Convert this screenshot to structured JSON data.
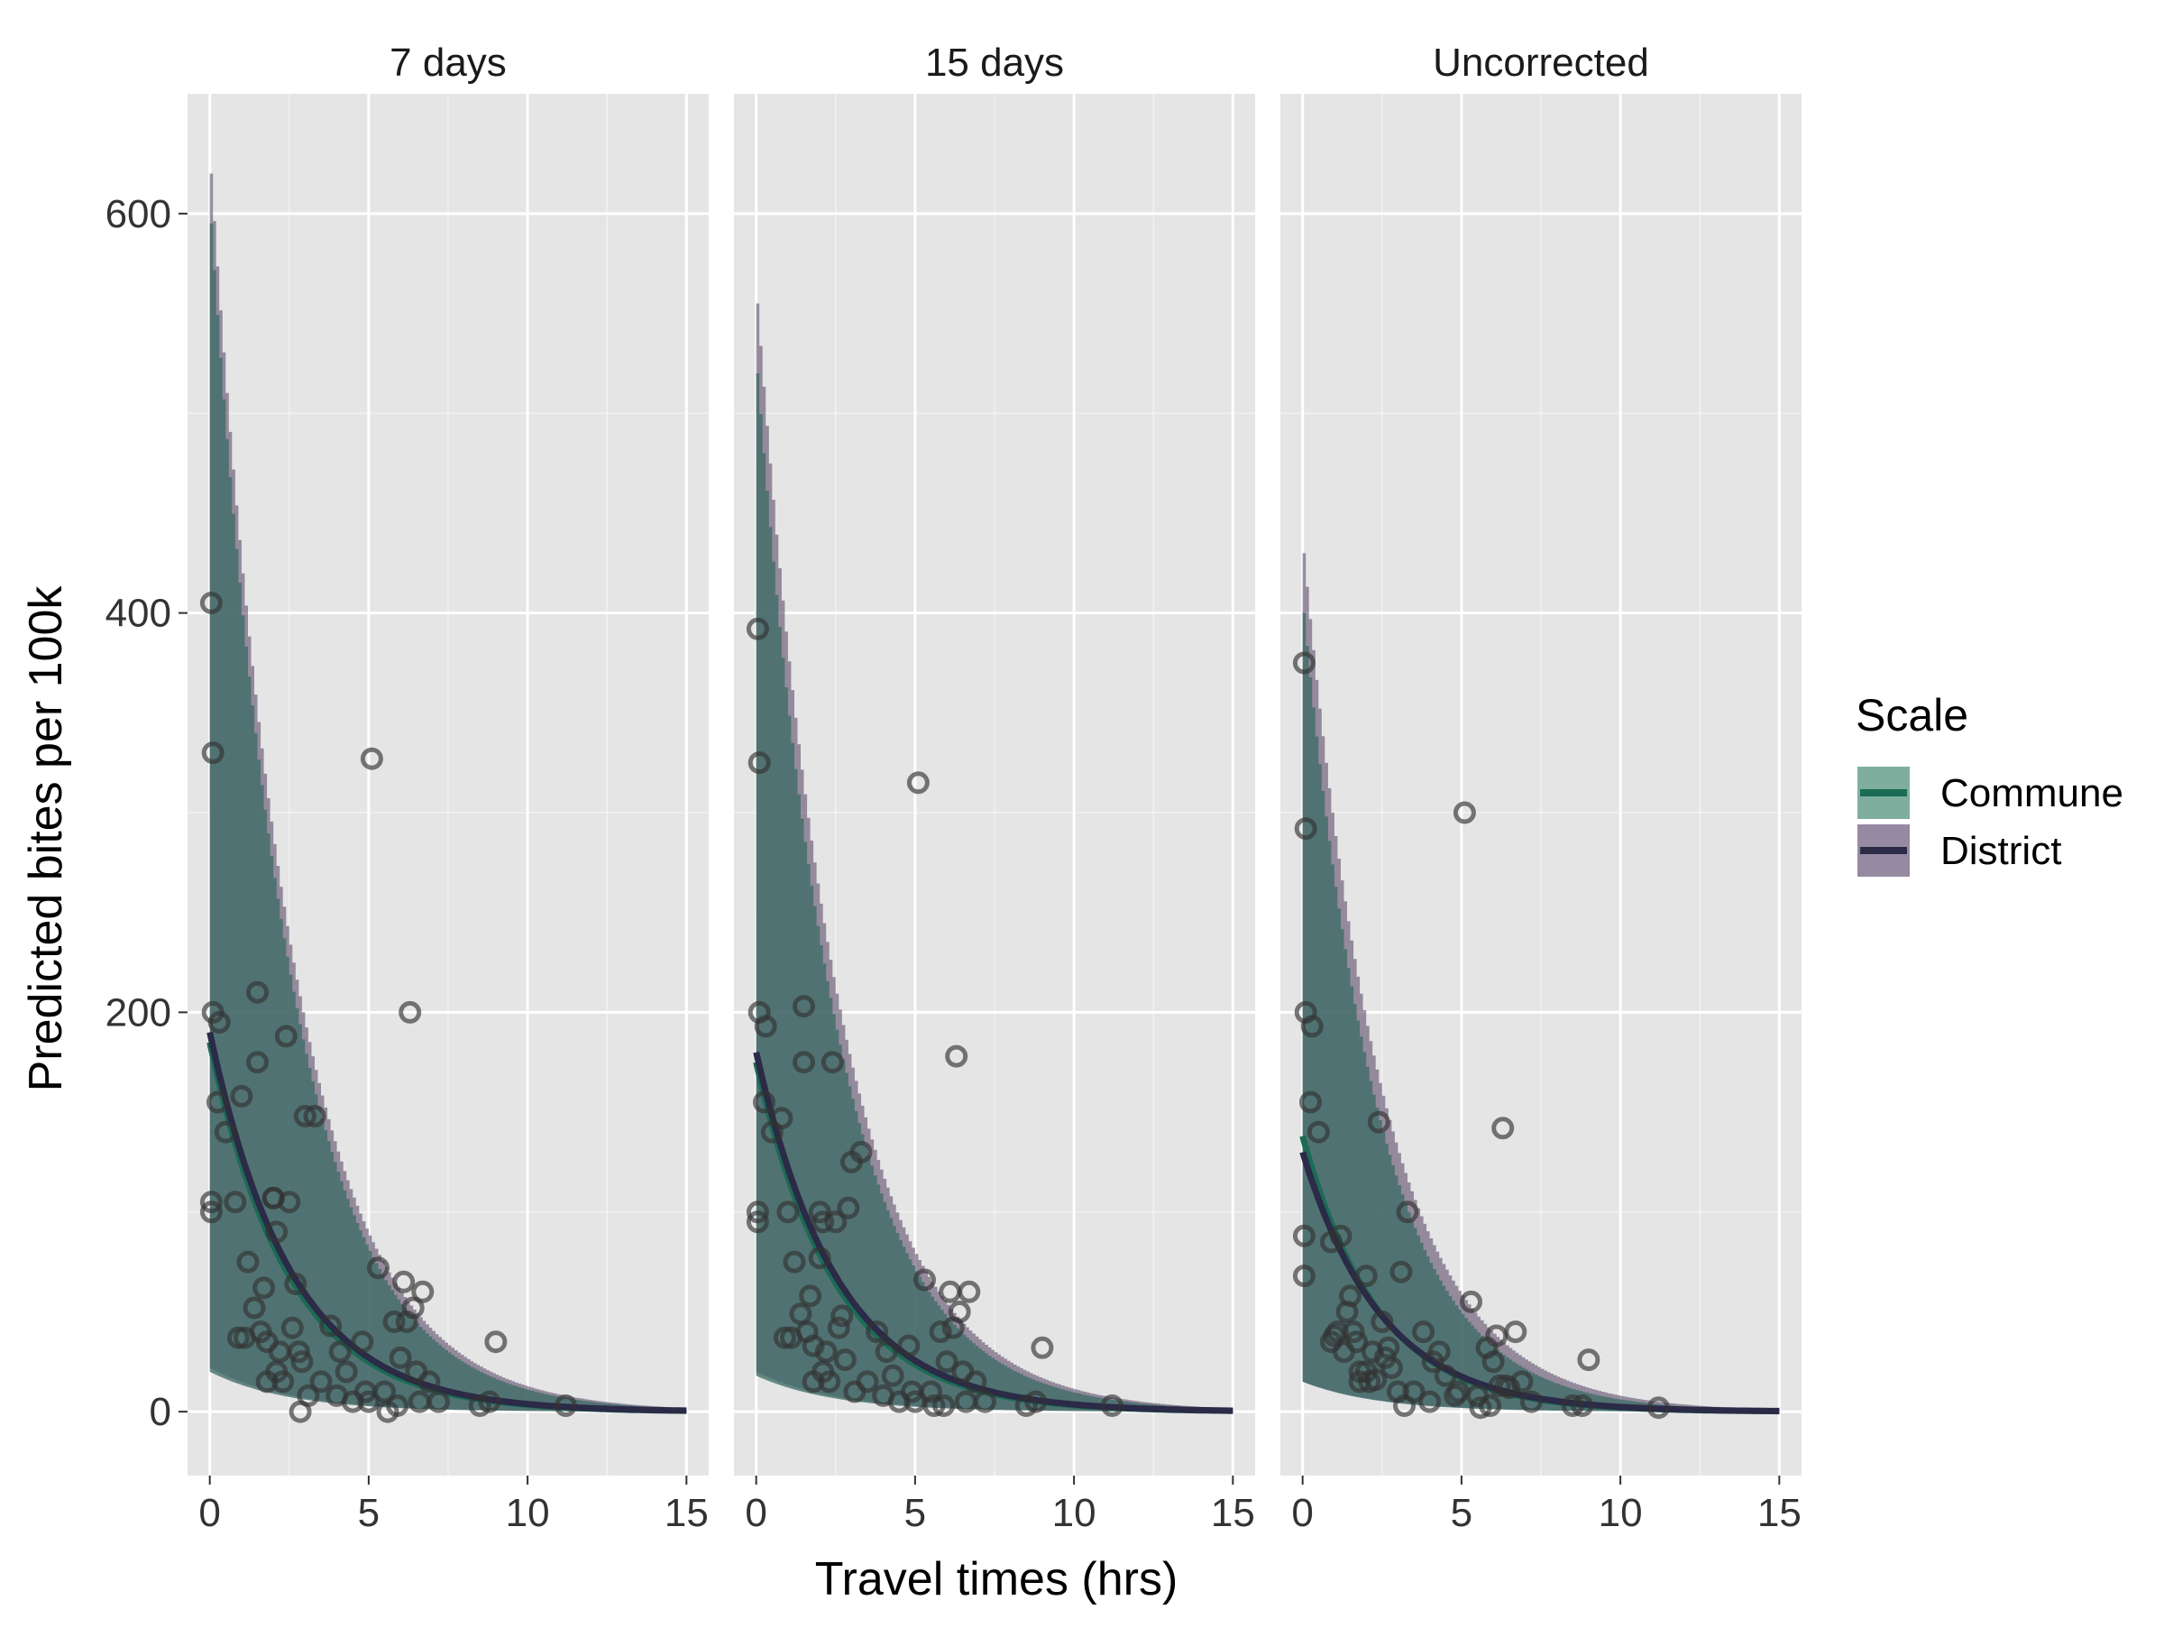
{
  "chart_data": {
    "type": "scatter",
    "xlabel": "Travel  times (hrs)",
    "ylabel": "Predicted bites per 100k",
    "xlim": [
      -0.7,
      15.7
    ],
    "ylim": [
      -32,
      660
    ],
    "x_ticks": [
      0,
      5,
      10,
      15
    ],
    "y_ticks": [
      0,
      200,
      400,
      600
    ],
    "x_tick_labels": [
      "0",
      "5",
      "10",
      "15"
    ],
    "y_tick_labels": [
      "0",
      "200",
      "400",
      "600"
    ],
    "grid": true,
    "legend": {
      "title": "Scale",
      "placement": "right",
      "entries": [
        {
          "label": "Commune",
          "line_color": "#1b6b55",
          "fill_color": "#7fae9e"
        },
        {
          "label": "District",
          "line_color": "#2b2a47",
          "fill_color": "#958aa2"
        }
      ]
    },
    "colors": {
      "panel_bg": "#e5e5e5",
      "grid": "#ffffff",
      "commune_band": "#3f6b66",
      "district_band": "#62536f",
      "point_stroke": "#333333"
    },
    "panels": [
      {
        "title": "7 days",
        "commune": {
          "a": 185,
          "k": 0.4,
          "lower_a": 20,
          "upper_a": 595
        },
        "district": {
          "a": 190,
          "k": 0.39,
          "lower_a": 22,
          "upper_a": 620
        },
        "points": [
          [
            0.05,
            405
          ],
          [
            0.1,
            330
          ],
          [
            0.1,
            200
          ],
          [
            0.05,
            105
          ],
          [
            0.05,
            100
          ],
          [
            0.3,
            195
          ],
          [
            0.25,
            155
          ],
          [
            0.5,
            140
          ],
          [
            0.8,
            105
          ],
          [
            1.0,
            158
          ],
          [
            0.9,
            37
          ],
          [
            1.1,
            37
          ],
          [
            1.2,
            75
          ],
          [
            1.4,
            52
          ],
          [
            1.5,
            210
          ],
          [
            1.5,
            175
          ],
          [
            1.6,
            40
          ],
          [
            1.7,
            62
          ],
          [
            1.8,
            35
          ],
          [
            1.8,
            15
          ],
          [
            2.0,
            107
          ],
          [
            2.0,
            107
          ],
          [
            2.1,
            90
          ],
          [
            2.1,
            20
          ],
          [
            2.2,
            30
          ],
          [
            2.3,
            15
          ],
          [
            2.4,
            188
          ],
          [
            2.5,
            105
          ],
          [
            2.6,
            42
          ],
          [
            2.7,
            64
          ],
          [
            2.8,
            30
          ],
          [
            2.85,
            0
          ],
          [
            2.9,
            25
          ],
          [
            3.0,
            148
          ],
          [
            3.1,
            8
          ],
          [
            3.3,
            148
          ],
          [
            3.5,
            15
          ],
          [
            3.8,
            43
          ],
          [
            4.0,
            8
          ],
          [
            4.1,
            30
          ],
          [
            4.3,
            20
          ],
          [
            4.5,
            5
          ],
          [
            4.8,
            35
          ],
          [
            4.9,
            10
          ],
          [
            5.0,
            5
          ],
          [
            5.1,
            327
          ],
          [
            5.3,
            72
          ],
          [
            5.5,
            10
          ],
          [
            5.6,
            0
          ],
          [
            5.8,
            45
          ],
          [
            5.9,
            3
          ],
          [
            6.0,
            27
          ],
          [
            6.1,
            65
          ],
          [
            6.2,
            45
          ],
          [
            6.3,
            200
          ],
          [
            6.4,
            52
          ],
          [
            6.5,
            20
          ],
          [
            6.6,
            5
          ],
          [
            6.7,
            60
          ],
          [
            6.9,
            15
          ],
          [
            7.2,
            5
          ],
          [
            8.5,
            3
          ],
          [
            8.8,
            5
          ],
          [
            9.0,
            35
          ],
          [
            11.2,
            3
          ]
        ]
      },
      {
        "title": "15 days",
        "commune": {
          "a": 175,
          "k": 0.4,
          "lower_a": 18,
          "upper_a": 520
        },
        "district": {
          "a": 180,
          "k": 0.39,
          "lower_a": 20,
          "upper_a": 555
        },
        "points": [
          [
            0.05,
            392
          ],
          [
            0.1,
            325
          ],
          [
            0.1,
            200
          ],
          [
            0.05,
            100
          ],
          [
            0.05,
            95
          ],
          [
            0.3,
            193
          ],
          [
            0.25,
            155
          ],
          [
            0.5,
            140
          ],
          [
            0.8,
            147
          ],
          [
            1.0,
            100
          ],
          [
            0.9,
            37
          ],
          [
            1.1,
            37
          ],
          [
            1.2,
            75
          ],
          [
            1.4,
            49
          ],
          [
            1.5,
            203
          ],
          [
            1.5,
            175
          ],
          [
            1.6,
            40
          ],
          [
            1.7,
            58
          ],
          [
            1.8,
            33
          ],
          [
            1.8,
            15
          ],
          [
            2.0,
            77
          ],
          [
            2.0,
            100
          ],
          [
            2.1,
            95
          ],
          [
            2.1,
            20
          ],
          [
            2.2,
            30
          ],
          [
            2.3,
            15
          ],
          [
            2.4,
            175
          ],
          [
            2.5,
            95
          ],
          [
            2.6,
            42
          ],
          [
            2.7,
            48
          ],
          [
            2.8,
            26
          ],
          [
            2.9,
            102
          ],
          [
            3.0,
            125
          ],
          [
            3.1,
            10
          ],
          [
            3.3,
            130
          ],
          [
            3.5,
            15
          ],
          [
            3.8,
            40
          ],
          [
            4.0,
            8
          ],
          [
            4.1,
            30
          ],
          [
            4.3,
            18
          ],
          [
            4.5,
            5
          ],
          [
            4.8,
            33
          ],
          [
            4.9,
            10
          ],
          [
            5.0,
            5
          ],
          [
            5.1,
            315
          ],
          [
            5.3,
            66
          ],
          [
            5.5,
            10
          ],
          [
            5.6,
            3
          ],
          [
            5.8,
            40
          ],
          [
            5.9,
            3
          ],
          [
            6.0,
            25
          ],
          [
            6.1,
            60
          ],
          [
            6.2,
            42
          ],
          [
            6.3,
            178
          ],
          [
            6.4,
            50
          ],
          [
            6.5,
            20
          ],
          [
            6.6,
            5
          ],
          [
            6.7,
            60
          ],
          [
            6.9,
            15
          ],
          [
            7.2,
            5
          ],
          [
            8.5,
            3
          ],
          [
            8.8,
            5
          ],
          [
            9.0,
            32
          ],
          [
            11.2,
            3
          ]
        ]
      },
      {
        "title": "Uncorrected",
        "commune": {
          "a": 138,
          "k": 0.42,
          "lower_a": 15,
          "upper_a": 400
        },
        "district": {
          "a": 130,
          "k": 0.4,
          "lower_a": 15,
          "upper_a": 430
        },
        "points": [
          [
            0.05,
            375
          ],
          [
            0.1,
            292
          ],
          [
            0.1,
            200
          ],
          [
            0.05,
            88
          ],
          [
            0.05,
            68
          ],
          [
            0.3,
            193
          ],
          [
            0.25,
            155
          ],
          [
            0.5,
            140
          ],
          [
            0.9,
            85
          ],
          [
            1.2,
            88
          ],
          [
            0.9,
            35
          ],
          [
            1.0,
            38
          ],
          [
            1.1,
            40
          ],
          [
            1.3,
            30
          ],
          [
            1.4,
            50
          ],
          [
            1.5,
            58
          ],
          [
            1.6,
            40
          ],
          [
            1.7,
            35
          ],
          [
            1.8,
            15
          ],
          [
            1.8,
            20
          ],
          [
            2.0,
            68
          ],
          [
            2.0,
            20
          ],
          [
            2.1,
            15
          ],
          [
            2.2,
            30
          ],
          [
            2.3,
            16
          ],
          [
            2.4,
            145
          ],
          [
            2.5,
            45
          ],
          [
            2.6,
            27
          ],
          [
            2.7,
            32
          ],
          [
            2.8,
            22
          ],
          [
            3.0,
            10
          ],
          [
            3.1,
            70
          ],
          [
            3.3,
            100
          ],
          [
            3.2,
            3
          ],
          [
            3.5,
            10
          ],
          [
            3.8,
            40
          ],
          [
            4.0,
            5
          ],
          [
            4.1,
            25
          ],
          [
            4.3,
            30
          ],
          [
            4.5,
            18
          ],
          [
            4.8,
            8
          ],
          [
            4.9,
            10
          ],
          [
            5.1,
            300
          ],
          [
            5.3,
            55
          ],
          [
            5.5,
            8
          ],
          [
            5.6,
            2
          ],
          [
            5.8,
            32
          ],
          [
            5.9,
            3
          ],
          [
            6.0,
            25
          ],
          [
            6.1,
            38
          ],
          [
            6.2,
            13
          ],
          [
            6.3,
            142
          ],
          [
            6.4,
            13
          ],
          [
            6.5,
            12
          ],
          [
            6.7,
            40
          ],
          [
            6.9,
            15
          ],
          [
            7.2,
            5
          ],
          [
            8.5,
            3
          ],
          [
            8.8,
            3
          ],
          [
            9.0,
            26
          ],
          [
            11.2,
            2
          ]
        ]
      }
    ]
  }
}
